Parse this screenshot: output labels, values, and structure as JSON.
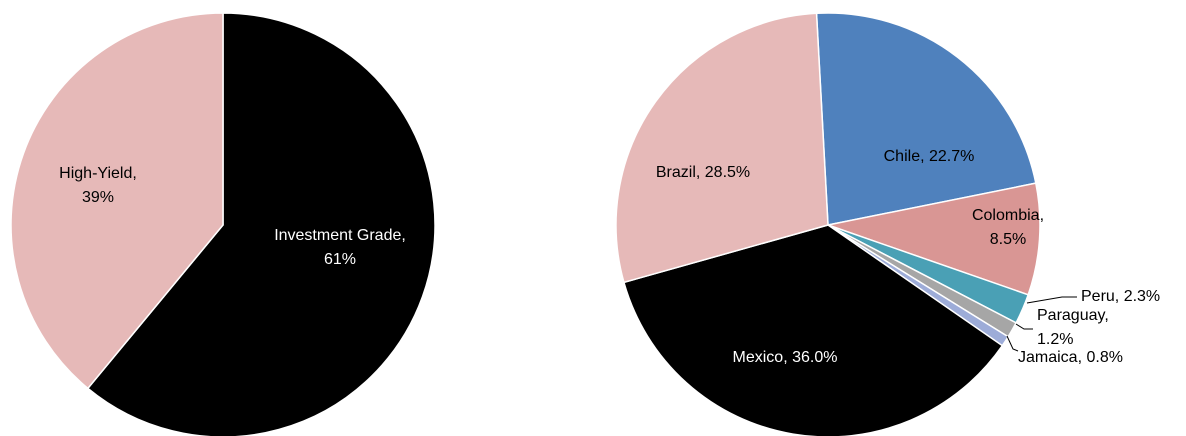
{
  "chart_data": [
    {
      "type": "pie",
      "categories": [
        "Investment Grade",
        "High-Yield"
      ],
      "values": [
        61,
        39
      ],
      "value_labels": [
        "61%",
        "39%"
      ],
      "colors": [
        "#000000",
        "#e6b9b8"
      ]
    },
    {
      "type": "pie",
      "categories": [
        "Chile",
        "Colombia",
        "Peru",
        "Paraguay",
        "Jamaica",
        "Mexico",
        "Brazil"
      ],
      "values": [
        22.7,
        8.5,
        2.3,
        1.2,
        0.8,
        36.0,
        28.5
      ],
      "value_labels": [
        "22.7%",
        "8.5%",
        "2.3%",
        "1.2%",
        "0.8%",
        "36.0%",
        "28.5%"
      ],
      "colors": [
        "#4f81bd",
        "#d99694",
        "#4aa0b5",
        "#a6a6a6",
        "#9dacd8",
        "#000000",
        "#e6b9b8"
      ]
    }
  ]
}
